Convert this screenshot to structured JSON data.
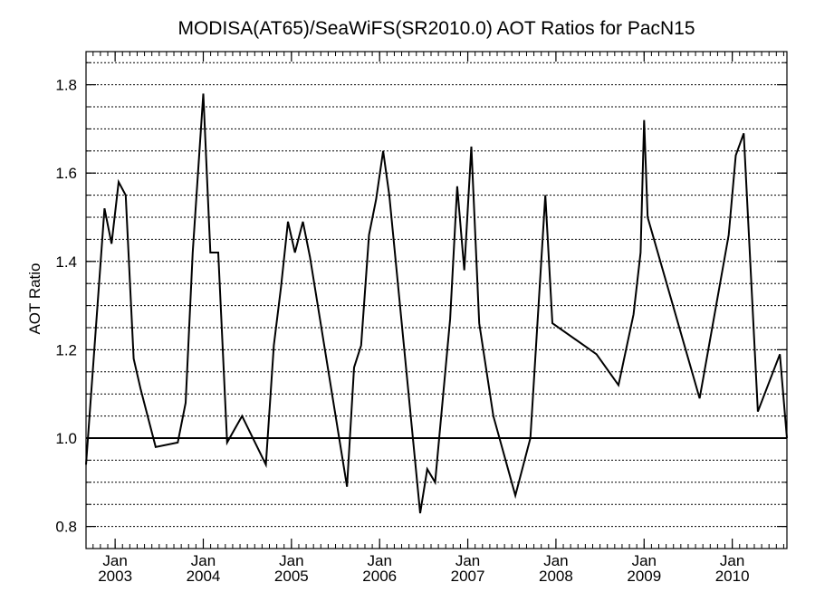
{
  "chart_data": {
    "type": "line",
    "title": "MODISA(AT65)/SeaWiFS(SR2010.0)  AOT Ratios for PacN15",
    "xlabel": "",
    "ylabel": "AOT Ratio",
    "xlim": [
      2002.67,
      2010.62
    ],
    "ylim": [
      0.75,
      1.875
    ],
    "y_ticks": [
      0.8,
      1.0,
      1.2,
      1.4,
      1.6,
      1.8
    ],
    "y_tick_labels": [
      "0.8",
      "1.0",
      "1.2",
      "1.4",
      "1.6",
      "1.8"
    ],
    "x_ticks": [
      {
        "value": 2003.0,
        "month": "Jan",
        "year": "2003"
      },
      {
        "value": 2004.0,
        "month": "Jan",
        "year": "2004"
      },
      {
        "value": 2005.0,
        "month": "Jan",
        "year": "2005"
      },
      {
        "value": 2006.0,
        "month": "Jan",
        "year": "2006"
      },
      {
        "value": 2007.0,
        "month": "Jan",
        "year": "2007"
      },
      {
        "value": 2008.0,
        "month": "Jan",
        "year": "2008"
      },
      {
        "value": 2009.0,
        "month": "Jan",
        "year": "2009"
      },
      {
        "value": 2010.0,
        "month": "Jan",
        "year": "2010"
      }
    ],
    "grid": "horizontal dashed",
    "reference_line": 1.0,
    "series": [
      {
        "x": [
          2002.67,
          2002.88,
          2002.96,
          2003.04,
          2003.12,
          2003.21,
          2003.29,
          2003.46,
          2003.71,
          2003.8,
          2003.88,
          2004.0,
          2004.08,
          2004.17,
          2004.27,
          2004.44,
          2004.71,
          2004.8,
          2004.88,
          2004.96,
          2005.04,
          2005.13,
          2005.21,
          2005.63,
          2005.71,
          2005.79,
          2005.88,
          2005.96,
          2006.04,
          2006.11,
          2006.46,
          2006.54,
          2006.63,
          2006.8,
          2006.88,
          2006.96,
          2007.04,
          2007.13,
          2007.29,
          2007.54,
          2007.71,
          2007.88,
          2007.96,
          2008.46,
          2008.71,
          2008.88,
          2008.96,
          2009.0,
          2009.04,
          2009.63,
          2009.96,
          2010.04,
          2010.13,
          2010.29,
          2010.54,
          2010.62
        ],
        "y": [
          0.94,
          1.52,
          1.44,
          1.58,
          1.55,
          1.18,
          1.11,
          0.98,
          0.99,
          1.08,
          1.42,
          1.78,
          1.42,
          1.42,
          0.99,
          1.05,
          0.94,
          1.21,
          1.34,
          1.49,
          1.42,
          1.49,
          1.41,
          0.89,
          1.16,
          1.21,
          1.46,
          1.54,
          1.65,
          1.55,
          0.83,
          0.93,
          0.9,
          1.27,
          1.57,
          1.38,
          1.66,
          1.26,
          1.05,
          0.87,
          1.0,
          1.55,
          1.26,
          1.19,
          1.12,
          1.28,
          1.42,
          1.72,
          1.5,
          1.09,
          1.46,
          1.64,
          1.69,
          1.06,
          1.19,
          1.0
        ]
      }
    ]
  }
}
